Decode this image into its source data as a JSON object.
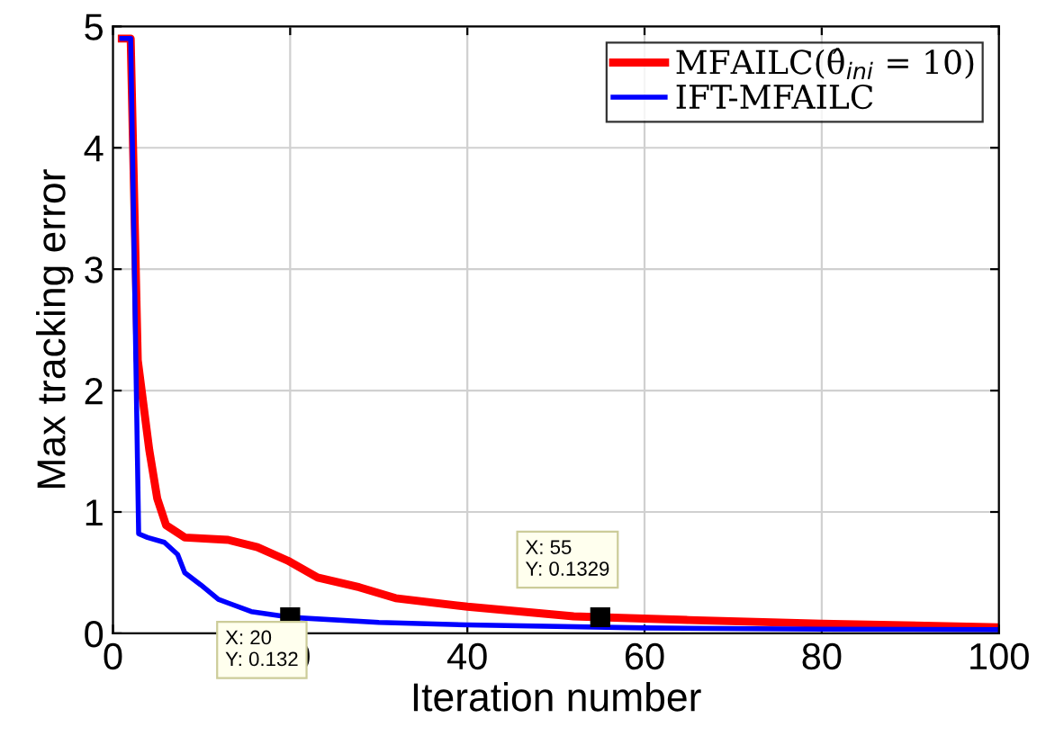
{
  "chart_data": {
    "type": "line",
    "xlabel": "Iteration number",
    "ylabel": "Max tracking error",
    "xlim": [
      0,
      100
    ],
    "ylim": [
      0,
      5
    ],
    "xticks": [
      0,
      20,
      40,
      60,
      80,
      100
    ],
    "yticks": [
      0,
      1,
      2,
      3,
      4,
      5
    ],
    "grid": true,
    "legend": "top right",
    "line_style": "solid",
    "marker": "none",
    "series": [
      {
        "name": "MFAILC(θ̂$_{ini}$ = 10)",
        "color": "#ff0000",
        "x": [
          1,
          2,
          2.8,
          4.1,
          5,
          6,
          8.1,
          13,
          16.3,
          19.7,
          23.1,
          27.8,
          31.9,
          40,
          52,
          55,
          65,
          80,
          100
        ],
        "values": [
          4.9,
          4.9,
          2.25,
          1.51,
          1.11,
          0.89,
          0.79,
          0.77,
          0.71,
          0.6,
          0.46,
          0.38,
          0.29,
          0.22,
          0.14,
          0.1329,
          0.11,
          0.08,
          0.05
        ]
      },
      {
        "name": "IFT-MFAILC",
        "color": "#0000ff",
        "x": [
          1,
          2,
          2.9,
          3.9,
          5.8,
          7.3,
          8.1,
          9.9,
          11.9,
          15.6,
          20,
          30,
          40,
          60,
          80,
          100
        ],
        "values": [
          4.9,
          4.9,
          0.82,
          0.79,
          0.75,
          0.65,
          0.5,
          0.4,
          0.28,
          0.18,
          0.132,
          0.09,
          0.07,
          0.045,
          0.035,
          0.03
        ]
      }
    ],
    "annotations": [
      {
        "text": "X: 20\nY: 0.132",
        "x": 20,
        "y": 0.132
      },
      {
        "text": "X: 55\nY: 0.1329",
        "x": 55,
        "y": 0.1329
      }
    ]
  }
}
